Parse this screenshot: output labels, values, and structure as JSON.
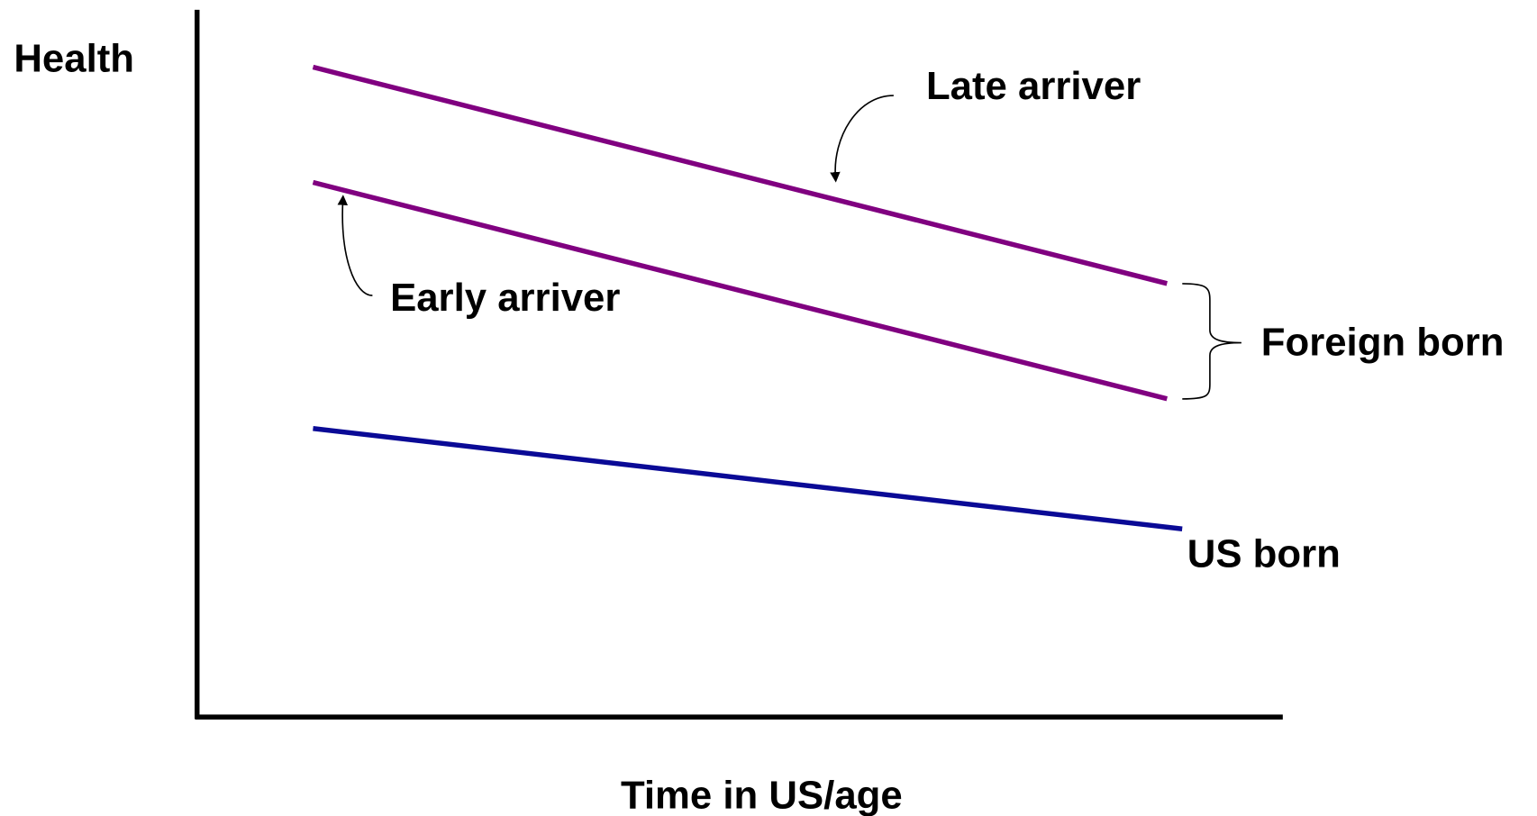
{
  "chart_data": {
    "type": "line",
    "y_label": "Health",
    "x_label": "Time in US/age",
    "xlim": [
      0,
      100
    ],
    "ylim": [
      0,
      100
    ],
    "series": [
      {
        "name": "Late arriver",
        "color": "#800080",
        "x": [
          10.7,
          89.5
        ],
        "values": [
          91.9,
          61.3
        ]
      },
      {
        "name": "Early arriver",
        "color": "#800080",
        "x": [
          10.7,
          89.5
        ],
        "values": [
          75.6,
          45.0
        ]
      },
      {
        "name": "US born",
        "color": "#0a0a96",
        "x": [
          10.7,
          90.9
        ],
        "values": [
          40.8,
          26.6
        ]
      }
    ],
    "annotations": [
      "Foreign born"
    ]
  }
}
